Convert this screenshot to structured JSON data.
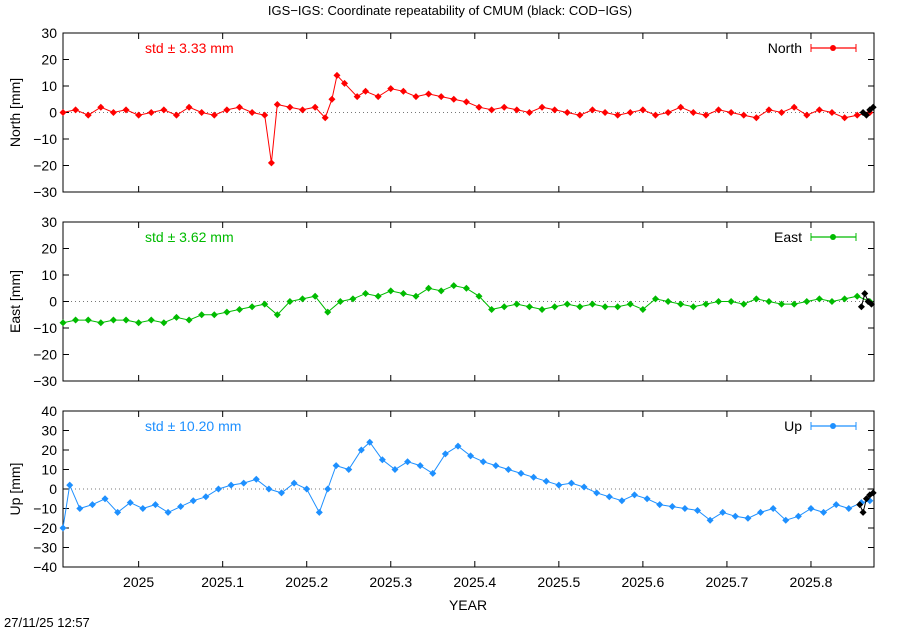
{
  "title": "IGS−IGS: Coordinate repeatability of CMUM (black: COD−IGS)",
  "timestamp": "27/11/25 12:57",
  "chart_data": {
    "type": "line",
    "xlabel": "YEAR",
    "xlim": [
      2024.91,
      2025.875
    ],
    "xticks": [
      2025,
      2025.1,
      2025.2,
      2025.3,
      2025.4,
      2025.5,
      2025.6,
      2025.7,
      2025.8
    ],
    "xtick_labels": [
      "2025",
      "2025.1",
      "2025.2",
      "2025.3",
      "2025.4",
      "2025.5",
      "2025.6",
      "2025.7",
      "2025.8"
    ],
    "panels": [
      {
        "name": "North",
        "ylabel": "North [mm]",
        "std_label": "std ± 3.33 mm",
        "color": "#ff0000",
        "ylim": [
          -30,
          30
        ],
        "yticks": [
          -30,
          -20,
          -10,
          0,
          10,
          20,
          30
        ],
        "x": [
          2024.91,
          2024.925,
          2024.94,
          2024.955,
          2024.97,
          2024.985,
          2025.0,
          2025.015,
          2025.03,
          2025.045,
          2025.06,
          2025.075,
          2025.09,
          2025.105,
          2025.12,
          2025.135,
          2025.15,
          2025.158,
          2025.165,
          2025.18,
          2025.195,
          2025.21,
          2025.222,
          2025.23,
          2025.236,
          2025.245,
          2025.26,
          2025.27,
          2025.285,
          2025.3,
          2025.315,
          2025.33,
          2025.345,
          2025.36,
          2025.375,
          2025.39,
          2025.405,
          2025.42,
          2025.435,
          2025.45,
          2025.465,
          2025.48,
          2025.495,
          2025.51,
          2025.525,
          2025.54,
          2025.555,
          2025.57,
          2025.585,
          2025.6,
          2025.615,
          2025.63,
          2025.645,
          2025.66,
          2025.675,
          2025.69,
          2025.705,
          2025.72,
          2025.735,
          2025.75,
          2025.765,
          2025.78,
          2025.795,
          2025.81,
          2025.825,
          2025.84,
          2025.855,
          2025.87
        ],
        "y": [
          0,
          1,
          -1,
          2,
          0,
          1,
          -1,
          0,
          1,
          -1,
          2,
          0,
          -1,
          1,
          2,
          0,
          -1,
          -19,
          3,
          2,
          1,
          2,
          -2,
          5,
          14,
          11,
          6,
          8,
          6,
          9,
          8,
          6,
          7,
          6,
          5,
          4,
          2,
          1,
          2,
          1,
          0,
          2,
          1,
          0,
          -1,
          1,
          0,
          -1,
          0,
          1,
          -1,
          0,
          2,
          0,
          -1,
          1,
          0,
          -1,
          -2,
          1,
          0,
          2,
          -1,
          1,
          0,
          -2,
          -1,
          0
        ],
        "comparison_x": [
          2025.862,
          2025.866,
          2025.87,
          2025.874
        ],
        "comparison_y": [
          0,
          -1,
          1,
          2
        ]
      },
      {
        "name": "East",
        "ylabel": "East [mm]",
        "std_label": "std ± 3.62 mm",
        "color": "#00bb00",
        "ylim": [
          -30,
          30
        ],
        "yticks": [
          -30,
          -20,
          -10,
          0,
          10,
          20,
          30
        ],
        "x": [
          2024.91,
          2024.925,
          2024.94,
          2024.955,
          2024.97,
          2024.985,
          2025.0,
          2025.015,
          2025.03,
          2025.045,
          2025.06,
          2025.075,
          2025.09,
          2025.105,
          2025.12,
          2025.135,
          2025.15,
          2025.165,
          2025.18,
          2025.195,
          2025.21,
          2025.225,
          2025.24,
          2025.255,
          2025.27,
          2025.285,
          2025.3,
          2025.315,
          2025.33,
          2025.345,
          2025.36,
          2025.375,
          2025.39,
          2025.405,
          2025.42,
          2025.435,
          2025.45,
          2025.465,
          2025.48,
          2025.495,
          2025.51,
          2025.525,
          2025.54,
          2025.555,
          2025.57,
          2025.585,
          2025.6,
          2025.615,
          2025.63,
          2025.645,
          2025.66,
          2025.675,
          2025.69,
          2025.705,
          2025.72,
          2025.735,
          2025.75,
          2025.765,
          2025.78,
          2025.795,
          2025.81,
          2025.825,
          2025.84,
          2025.855,
          2025.87
        ],
        "y": [
          -8,
          -7,
          -7,
          -8,
          -7,
          -7,
          -8,
          -7,
          -8,
          -6,
          -7,
          -5,
          -5,
          -4,
          -3,
          -2,
          -1,
          -5,
          0,
          1,
          2,
          -4,
          0,
          1,
          3,
          2,
          4,
          3,
          2,
          5,
          4,
          6,
          5,
          2,
          -3,
          -2,
          -1,
          -2,
          -3,
          -2,
          -1,
          -2,
          -1,
          -2,
          -2,
          -1,
          -3,
          1,
          0,
          -1,
          -2,
          -1,
          0,
          0,
          -1,
          1,
          0,
          -1,
          -1,
          0,
          1,
          0,
          1,
          2,
          0
        ],
        "comparison_x": [
          2025.86,
          2025.864,
          2025.868,
          2025.872
        ],
        "comparison_y": [
          -2,
          3,
          0,
          -1
        ]
      },
      {
        "name": "Up",
        "ylabel": "Up [mm]",
        "std_label": "std ± 10.20 mm",
        "color": "#1e90ff",
        "ylim": [
          -40,
          40
        ],
        "yticks": [
          -40,
          -30,
          -20,
          -10,
          0,
          10,
          20,
          30,
          40
        ],
        "x": [
          2024.91,
          2024.918,
          2024.93,
          2024.945,
          2024.96,
          2024.975,
          2024.99,
          2025.005,
          2025.02,
          2025.035,
          2025.05,
          2025.065,
          2025.08,
          2025.095,
          2025.11,
          2025.125,
          2025.14,
          2025.155,
          2025.17,
          2025.185,
          2025.2,
          2025.215,
          2025.225,
          2025.235,
          2025.25,
          2025.265,
          2025.275,
          2025.29,
          2025.305,
          2025.32,
          2025.335,
          2025.35,
          2025.365,
          2025.38,
          2025.395,
          2025.41,
          2025.425,
          2025.44,
          2025.455,
          2025.47,
          2025.485,
          2025.5,
          2025.515,
          2025.53,
          2025.545,
          2025.56,
          2025.575,
          2025.59,
          2025.605,
          2025.62,
          2025.635,
          2025.65,
          2025.665,
          2025.68,
          2025.695,
          2025.71,
          2025.725,
          2025.74,
          2025.755,
          2025.77,
          2025.785,
          2025.8,
          2025.815,
          2025.83,
          2025.845,
          2025.86,
          2025.87
        ],
        "y": [
          -20,
          2,
          -10,
          -8,
          -5,
          -12,
          -7,
          -10,
          -8,
          -12,
          -9,
          -6,
          -4,
          0,
          2,
          3,
          5,
          0,
          -2,
          3,
          0,
          -12,
          0,
          12,
          10,
          20,
          24,
          15,
          10,
          14,
          12,
          8,
          18,
          22,
          17,
          14,
          12,
          10,
          8,
          6,
          4,
          2,
          3,
          1,
          -2,
          -4,
          -6,
          -3,
          -5,
          -8,
          -9,
          -10,
          -11,
          -16,
          -12,
          -14,
          -15,
          -12,
          -10,
          -16,
          -14,
          -10,
          -12,
          -8,
          -10,
          -7,
          -6
        ],
        "comparison_x": [
          2025.858,
          2025.862,
          2025.866,
          2025.87,
          2025.874
        ],
        "comparison_y": [
          -8,
          -12,
          -5,
          -3,
          -2
        ]
      }
    ]
  }
}
